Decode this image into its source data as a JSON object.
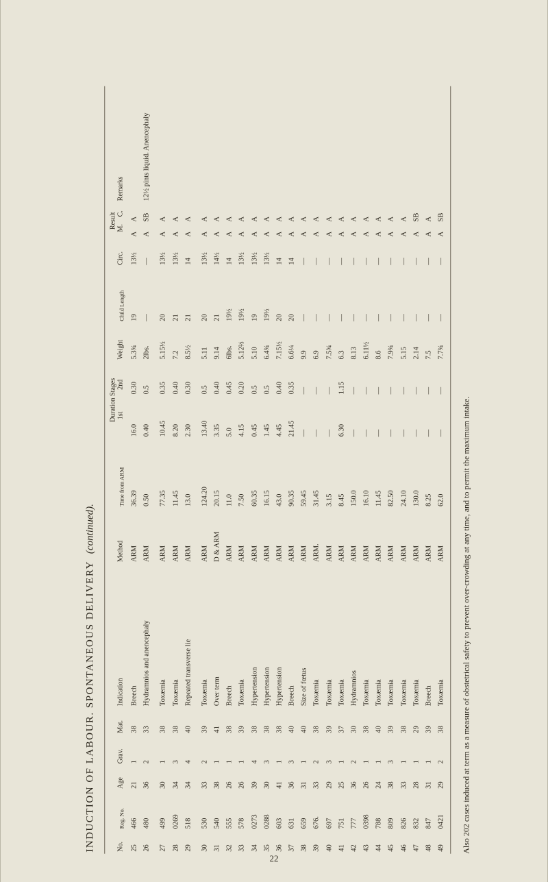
{
  "page_number": "22",
  "title_main": "INDUCTION OF LABOUR.  SPONTANEOUS DELIVERY",
  "title_cont": "(continued).",
  "footnote": "Also 202 cases induced at term as a measure of obstetrical safety to prevent over-crowding at any time, and to permit the maximum intake.",
  "headers": {
    "no": "No.",
    "reg": "Reg.\nNo.",
    "age": "Age",
    "grav": "Grav.",
    "mat": "Mat.",
    "indication": "Indication",
    "method": "Method",
    "time": "Time\nfrom ARM",
    "duration": "Duration\nStages",
    "dur1": "1st",
    "dur2": "2nd",
    "weight": "Weight",
    "child": "Child\nLength",
    "circ": "Circ.",
    "result": "Result",
    "res_m": "M.",
    "res_c": "C.",
    "remarks": "Remarks"
  },
  "rows": [
    {
      "no": "25",
      "reg": "466",
      "age": "21",
      "grav": "1",
      "mat": "38",
      "ind": "Breech",
      "meth": "ARM",
      "time": "36.39",
      "d1": "16.0",
      "d2": "0.30",
      "wt": "5.3¾",
      "len": "19",
      "circ": "13½",
      "rm": "A",
      "rc": "A",
      "rem": ""
    },
    {
      "no": "26",
      "reg": "480",
      "age": "36",
      "grav": "2",
      "mat": "33",
      "ind": "Hydramnios  and anencephaly",
      "meth": "ARM",
      "time": "0.50",
      "d1": "0.40",
      "d2": "0.5",
      "wt": "2lbs.",
      "len": "—",
      "circ": "—",
      "rm": "A",
      "rc": "SB",
      "rem": "12½ pints liquid. Anencephaly"
    },
    {
      "no": "27",
      "reg": "499",
      "age": "30",
      "grav": "1",
      "mat": "38",
      "ind": "Toxæmia",
      "meth": "ARM",
      "time": "77.35",
      "d1": "10.45",
      "d2": "0.35",
      "wt": "5.15½",
      "len": "20",
      "circ": "13½",
      "rm": "A",
      "rc": "A",
      "rem": ""
    },
    {
      "no": "28",
      "reg": "0269",
      "age": "34",
      "grav": "3",
      "mat": "38",
      "ind": "Toxæmia",
      "meth": "ARM",
      "time": "11.45",
      "d1": "8.20",
      "d2": "0.40",
      "wt": "7.2",
      "len": "21",
      "circ": "13½",
      "rm": "A",
      "rc": "A",
      "rem": ""
    },
    {
      "no": "29",
      "reg": "518",
      "age": "34",
      "grav": "4",
      "mat": "40",
      "ind": "Repeated transverse lie",
      "meth": "ARM",
      "time": "13.0",
      "d1": "2.30",
      "d2": "0.30",
      "wt": "8.5½",
      "len": "21",
      "circ": "14",
      "rm": "A",
      "rc": "A",
      "rem": ""
    },
    {
      "no": "30",
      "reg": "530",
      "age": "33",
      "grav": "2",
      "mat": "39",
      "ind": "Toxæmia",
      "meth": "ARM",
      "time": "124.20",
      "d1": "13.40",
      "d2": "0.5",
      "wt": "5.11",
      "len": "20",
      "circ": "13½",
      "rm": "A",
      "rc": "A",
      "rem": ""
    },
    {
      "no": "31",
      "reg": "540",
      "age": "38",
      "grav": "1",
      "mat": "41",
      "ind": "Over term",
      "meth": "D & ARM",
      "time": "20.15",
      "d1": "3.35",
      "d2": "0.40",
      "wt": "9.14",
      "len": "21",
      "circ": "14½",
      "rm": "A",
      "rc": "A",
      "rem": ""
    },
    {
      "no": "32",
      "reg": "555",
      "age": "26",
      "grav": "1",
      "mat": "38",
      "ind": "Breech",
      "meth": "ARM",
      "time": "11.0",
      "d1": "5.0",
      "d2": "0.45",
      "wt": "6lbs.",
      "len": "19½",
      "circ": "14",
      "rm": "A",
      "rc": "A",
      "rem": ""
    },
    {
      "no": "33",
      "reg": "578",
      "age": "26",
      "grav": "1",
      "mat": "39",
      "ind": "Toxæmia",
      "meth": "ARM",
      "time": "7.50",
      "d1": "4.15",
      "d2": "0.20",
      "wt": "5.12⅔",
      "len": "19½",
      "circ": "13½",
      "rm": "A",
      "rc": "A",
      "rem": ""
    },
    {
      "no": "34",
      "reg": "0273",
      "age": "39",
      "grav": "4",
      "mat": "38",
      "ind": "Hypertension",
      "meth": "ARM",
      "time": "60.35",
      "d1": "0.45",
      "d2": "0.5",
      "wt": "5.10",
      "len": "19",
      "circ": "13½",
      "rm": "A",
      "rc": "A",
      "rem": ""
    },
    {
      "no": "35",
      "reg": "0288",
      "age": "30",
      "grav": "3",
      "mat": "38",
      "ind": "Hypertension",
      "meth": "ARM",
      "time": "16.15",
      "d1": "1.45",
      "d2": "0.5",
      "wt": "6.4¾",
      "len": "19½",
      "circ": "13½",
      "rm": "A",
      "rc": "A",
      "rem": ""
    },
    {
      "no": "36",
      "reg": "603",
      "age": "41",
      "grav": "1",
      "mat": "38",
      "ind": "Hypertension",
      "meth": "ARM",
      "time": "43.0",
      "d1": "4.45",
      "d2": "0.40",
      "wt": "7.15½",
      "len": "20",
      "circ": "14",
      "rm": "A",
      "rc": "A",
      "rem": ""
    },
    {
      "no": "37",
      "reg": "631",
      "age": "36",
      "grav": "3",
      "mat": "40",
      "ind": "Breech",
      "meth": "ARM",
      "time": "90.35",
      "d1": "21.45",
      "d2": "0.35",
      "wt": "6.6¼",
      "len": "20",
      "circ": "14",
      "rm": "A",
      "rc": "A",
      "rem": ""
    },
    {
      "no": "38",
      "reg": "659",
      "age": "31",
      "grav": "1",
      "mat": "40",
      "ind": "Size of fœtus",
      "meth": "ARM",
      "time": "59.45",
      "d1": "—",
      "d2": "—",
      "wt": "9.9",
      "len": "—",
      "circ": "—",
      "rm": "A",
      "rc": "A",
      "rem": ""
    },
    {
      "no": "39",
      "reg": "676.",
      "age": "33",
      "grav": "2",
      "mat": "38",
      "ind": "Toxæmia",
      "meth": "ARM.",
      "time": "31.45",
      "d1": "—",
      "d2": "—",
      "wt": "6.9",
      "len": "—",
      "circ": "—",
      "rm": "A",
      "rc": "A",
      "rem": ""
    },
    {
      "no": "40",
      "reg": "697",
      "age": "29",
      "grav": "3",
      "mat": "39",
      "ind": "Toxæmia",
      "meth": "ARM",
      "time": "3.15",
      "d1": "—",
      "d2": "—",
      "wt": "7.5¾",
      "len": "—",
      "circ": "—",
      "rm": "A",
      "rc": "A",
      "rem": ""
    },
    {
      "no": "41",
      "reg": "751",
      "age": "25",
      "grav": "1",
      "mat": "37",
      "ind": "Toxæmia",
      "meth": "ARM",
      "time": "8.45",
      "d1": "6.30",
      "d2": "1.15",
      "wt": "6.3",
      "len": "—",
      "circ": "—",
      "rm": "A",
      "rc": "A",
      "rem": ""
    },
    {
      "no": "42",
      "reg": "777",
      "age": "36",
      "grav": "2",
      "mat": "30",
      "ind": "Hydramnios",
      "meth": "ARM",
      "time": "150.0",
      "d1": "—",
      "d2": "—",
      "wt": "8.13",
      "len": "—",
      "circ": "—",
      "rm": "A",
      "rc": "A",
      "rem": ""
    },
    {
      "no": "43",
      "reg": "0398",
      "age": "26",
      "grav": "1",
      "mat": "38",
      "ind": "Toxæmia",
      "meth": "ARM",
      "time": "16.10",
      "d1": "—",
      "d2": "—",
      "wt": "6.11½",
      "len": "—",
      "circ": "—",
      "rm": "A",
      "rc": "A",
      "rem": ""
    },
    {
      "no": "44",
      "reg": "788",
      "age": "24",
      "grav": "1",
      "mat": "40",
      "ind": "Toxæmia",
      "meth": "ARM",
      "time": "11.45",
      "d1": "—",
      "d2": "—",
      "wt": "8.6",
      "len": "—",
      "circ": "—",
      "rm": "A",
      "rc": "A",
      "rem": ""
    },
    {
      "no": "45",
      "reg": "809",
      "age": "38",
      "grav": "3",
      "mat": "39",
      "ind": "Toxæmia",
      "meth": "ARM",
      "time": "82.50",
      "d1": "—",
      "d2": "—",
      "wt": "7.9¾",
      "len": "—",
      "circ": "—",
      "rm": "A",
      "rc": "A",
      "rem": ""
    },
    {
      "no": "46",
      "reg": "826",
      "age": "33",
      "grav": "1",
      "mat": "38",
      "ind": "Toxæmia",
      "meth": "ARM",
      "time": "24.10",
      "d1": "—",
      "d2": "—",
      "wt": "5.15",
      "len": "—",
      "circ": "—",
      "rm": "A",
      "rc": "A",
      "rem": ""
    },
    {
      "no": "47",
      "reg": "832",
      "age": "28",
      "grav": "1",
      "mat": "29",
      "ind": "Toxæmia",
      "meth": "ARM",
      "time": "130.0",
      "d1": "—",
      "d2": "—",
      "wt": "2.14",
      "len": "—",
      "circ": "—",
      "rm": "A",
      "rc": "SB",
      "rem": ""
    },
    {
      "no": "48",
      "reg": "847",
      "age": "31",
      "grav": "1",
      "mat": "39",
      "ind": "Breech",
      "meth": "ARM",
      "time": "8.25",
      "d1": "—",
      "d2": "—",
      "wt": "7.5",
      "len": "—",
      "circ": "—",
      "rm": "A",
      "rc": "A",
      "rem": ""
    },
    {
      "no": "49",
      "reg": "0421",
      "age": "29",
      "grav": "2",
      "mat": "38",
      "ind": "Toxæmia",
      "meth": "ARM",
      "time": "62.0",
      "d1": "—",
      "d2": "—",
      "wt": "7.7¾",
      "len": "—",
      "circ": "—",
      "rm": "A",
      "rc": "SB",
      "rem": ""
    }
  ]
}
